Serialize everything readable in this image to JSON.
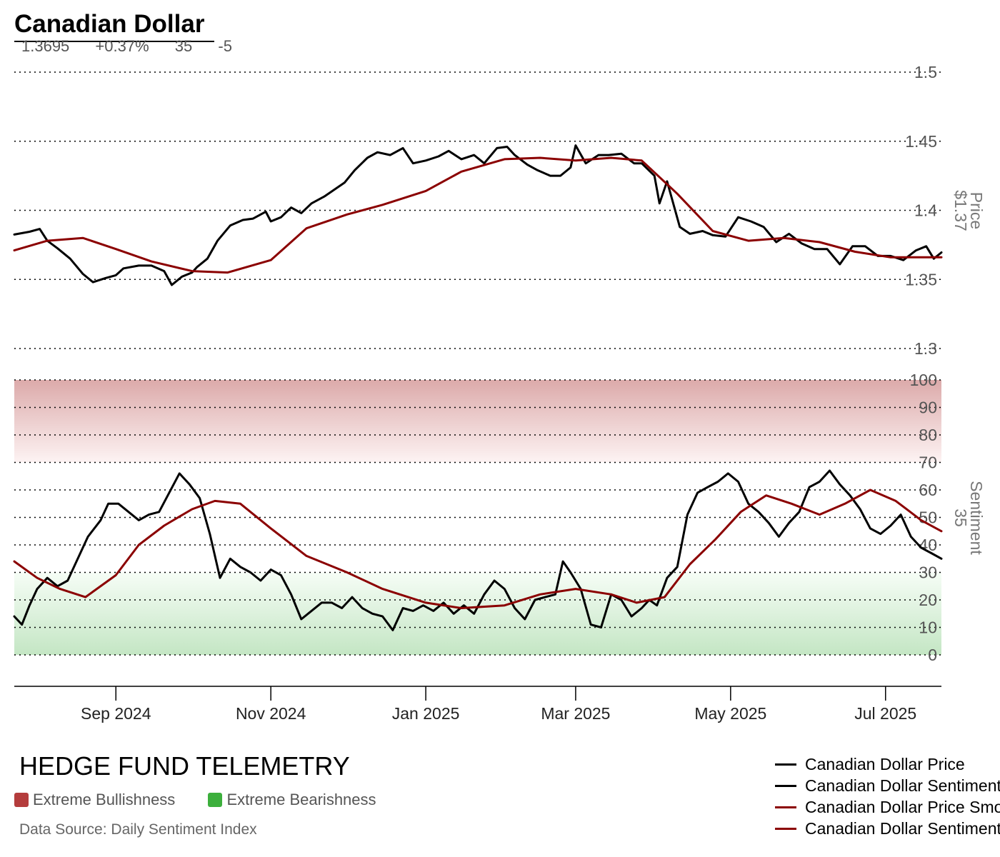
{
  "header": {
    "title": "Canadian Dollar",
    "price": "1.3695",
    "change": "+0.37%",
    "sentiment": "35",
    "sentiment_change": "-5"
  },
  "footer": {
    "brand": "HEDGE FUND TELEMETRY",
    "bull_label": "Extreme Bullishness",
    "bear_label": "Extreme Bearishness",
    "bull_color": "#b43c3c",
    "bear_color": "#3caf3c",
    "source": "Data Source: Daily Sentiment Index"
  },
  "chart_data": [
    {
      "type": "line",
      "panel": "price",
      "ylabel": "Price",
      "ylabel_value": "$1.37",
      "ylim": [
        1.3,
        1.5
      ],
      "yticks": [
        1.3,
        1.35,
        1.4,
        1.45,
        1.5
      ],
      "ytick_labels": [
        "1.3",
        "1.35",
        "1.4",
        "1.45",
        "1.5"
      ],
      "grid": true,
      "x_range": [
        "2024-07-23",
        "2025-07-23"
      ],
      "xticks": [
        "2024-09-01",
        "2024-11-01",
        "2025-01-01",
        "2025-03-01",
        "2025-05-01",
        "2025-07-01"
      ],
      "xtick_labels": [
        "Sep 2024",
        "Nov 2024",
        "Jan 2025",
        "Mar 2025",
        "May 2025",
        "Jul 2025"
      ],
      "series": [
        {
          "name": "Canadian Dollar Price",
          "color": "#000000",
          "x": [
            "2024-07-23",
            "2024-07-29",
            "2024-08-02",
            "2024-08-05",
            "2024-08-09",
            "2024-08-14",
            "2024-08-19",
            "2024-08-23",
            "2024-08-28",
            "2024-09-01",
            "2024-09-04",
            "2024-09-10",
            "2024-09-15",
            "2024-09-20",
            "2024-09-23",
            "2024-09-27",
            "2024-10-01",
            "2024-10-03",
            "2024-10-07",
            "2024-10-11",
            "2024-10-16",
            "2024-10-21",
            "2024-10-25",
            "2024-10-30",
            "2024-11-01",
            "2024-11-05",
            "2024-11-09",
            "2024-11-13",
            "2024-11-17",
            "2024-11-22",
            "2024-11-26",
            "2024-11-30",
            "2024-12-04",
            "2024-12-09",
            "2024-12-13",
            "2024-12-18",
            "2024-12-23",
            "2024-12-27",
            "2025-01-01",
            "2025-01-06",
            "2025-01-10",
            "2025-01-15",
            "2025-01-20",
            "2025-01-24",
            "2025-01-29",
            "2025-02-02",
            "2025-02-05",
            "2025-02-10",
            "2025-02-14",
            "2025-02-19",
            "2025-02-23",
            "2025-02-27",
            "2025-03-01",
            "2025-03-05",
            "2025-03-10",
            "2025-03-14",
            "2025-03-19",
            "2025-03-24",
            "2025-03-27",
            "2025-04-01",
            "2025-04-03",
            "2025-04-06",
            "2025-04-11",
            "2025-04-15",
            "2025-04-20",
            "2025-04-24",
            "2025-04-29",
            "2025-05-04",
            "2025-05-09",
            "2025-05-14",
            "2025-05-19",
            "2025-05-24",
            "2025-05-29",
            "2025-06-03",
            "2025-06-08",
            "2025-06-13",
            "2025-06-18",
            "2025-06-23",
            "2025-06-28",
            "2025-07-03",
            "2025-07-08",
            "2025-07-13",
            "2025-07-17",
            "2025-07-20",
            "2025-07-23"
          ],
          "values": [
            1.3825,
            1.3845,
            1.3865,
            1.378,
            1.3725,
            1.365,
            1.354,
            1.348,
            1.351,
            1.353,
            1.358,
            1.36,
            1.36,
            1.356,
            1.346,
            1.352,
            1.355,
            1.359,
            1.365,
            1.378,
            1.389,
            1.393,
            1.394,
            1.399,
            1.392,
            1.395,
            1.402,
            1.398,
            1.405,
            1.41,
            1.415,
            1.42,
            1.429,
            1.438,
            1.442,
            1.44,
            1.445,
            1.434,
            1.436,
            1.439,
            1.443,
            1.437,
            1.44,
            1.434,
            1.445,
            1.446,
            1.44,
            1.433,
            1.429,
            1.425,
            1.425,
            1.431,
            1.447,
            1.434,
            1.44,
            1.44,
            1.441,
            1.434,
            1.434,
            1.425,
            1.405,
            1.421,
            1.388,
            1.383,
            1.385,
            1.382,
            1.381,
            1.395,
            1.392,
            1.388,
            1.377,
            1.383,
            1.376,
            1.372,
            1.372,
            1.361,
            1.374,
            1.374,
            1.367,
            1.367,
            1.364,
            1.371,
            1.374,
            1.365,
            1.3695
          ]
        },
        {
          "name": "Canadian Dollar Price Smoothed",
          "color": "#8b0000",
          "x": [
            "2024-07-23",
            "2024-08-05",
            "2024-08-19",
            "2024-09-01",
            "2024-09-15",
            "2024-10-01",
            "2024-10-15",
            "2024-11-01",
            "2024-11-15",
            "2024-12-01",
            "2024-12-15",
            "2025-01-01",
            "2025-01-15",
            "2025-02-01",
            "2025-02-15",
            "2025-03-01",
            "2025-03-15",
            "2025-03-27",
            "2025-04-10",
            "2025-04-24",
            "2025-05-08",
            "2025-05-22",
            "2025-06-05",
            "2025-06-19",
            "2025-07-03",
            "2025-07-17",
            "2025-07-23"
          ],
          "values": [
            1.371,
            1.378,
            1.38,
            1.372,
            1.363,
            1.356,
            1.355,
            1.364,
            1.387,
            1.397,
            1.404,
            1.414,
            1.428,
            1.437,
            1.438,
            1.436,
            1.438,
            1.436,
            1.412,
            1.385,
            1.378,
            1.38,
            1.377,
            1.37,
            1.366,
            1.366,
            1.366
          ]
        }
      ]
    },
    {
      "type": "line",
      "panel": "sentiment",
      "ylabel": "Sentiment",
      "ylabel_value": "35",
      "ylim": [
        0,
        100
      ],
      "yticks": [
        0,
        10,
        20,
        30,
        40,
        50,
        60,
        70,
        80,
        90,
        100
      ],
      "ytick_labels": [
        "0",
        "10",
        "20",
        "30",
        "40",
        "50",
        "60",
        "70",
        "80",
        "90",
        "100"
      ],
      "grid": true,
      "bands": [
        {
          "label": "Extreme Bullishness",
          "from": 70,
          "to": 100
        },
        {
          "label": "Extreme Bearishness",
          "from": 0,
          "to": 30
        }
      ],
      "x_range": [
        "2024-07-23",
        "2025-07-23"
      ],
      "series": [
        {
          "name": "Canadian Dollar Sentiment",
          "color": "#000000",
          "x": [
            "2024-07-23",
            "2024-07-26",
            "2024-07-29",
            "2024-08-01",
            "2024-08-05",
            "2024-08-09",
            "2024-08-13",
            "2024-08-16",
            "2024-08-21",
            "2024-08-26",
            "2024-08-29",
            "2024-09-02",
            "2024-09-06",
            "2024-09-10",
            "2024-09-14",
            "2024-09-18",
            "2024-09-22",
            "2024-09-26",
            "2024-09-30",
            "2024-10-04",
            "2024-10-08",
            "2024-10-12",
            "2024-10-16",
            "2024-10-20",
            "2024-10-24",
            "2024-10-28",
            "2024-11-01",
            "2024-11-05",
            "2024-11-09",
            "2024-11-13",
            "2024-11-17",
            "2024-11-21",
            "2024-11-25",
            "2024-11-29",
            "2024-12-03",
            "2024-12-07",
            "2024-12-11",
            "2024-12-15",
            "2024-12-19",
            "2024-12-23",
            "2024-12-27",
            "2024-12-31",
            "2025-01-04",
            "2025-01-08",
            "2025-01-12",
            "2025-01-16",
            "2025-01-20",
            "2025-01-24",
            "2025-01-28",
            "2025-02-01",
            "2025-02-05",
            "2025-02-09",
            "2025-02-13",
            "2025-02-17",
            "2025-02-21",
            "2025-02-24",
            "2025-02-27",
            "2025-03-03",
            "2025-03-07",
            "2025-03-11",
            "2025-03-15",
            "2025-03-19",
            "2025-03-23",
            "2025-03-27",
            "2025-03-30",
            "2025-04-02",
            "2025-04-06",
            "2025-04-10",
            "2025-04-14",
            "2025-04-18",
            "2025-04-22",
            "2025-04-26",
            "2025-04-30",
            "2025-05-04",
            "2025-05-08",
            "2025-05-12",
            "2025-05-16",
            "2025-05-20",
            "2025-05-24",
            "2025-05-28",
            "2025-06-01",
            "2025-06-05",
            "2025-06-09",
            "2025-06-13",
            "2025-06-17",
            "2025-06-21",
            "2025-06-25",
            "2025-06-29",
            "2025-07-03",
            "2025-07-07",
            "2025-07-11",
            "2025-07-15",
            "2025-07-19",
            "2025-07-23"
          ],
          "values": [
            14,
            11,
            18,
            24,
            28,
            25,
            27,
            33,
            43,
            49,
            55,
            55,
            52,
            49,
            51,
            52,
            59,
            66,
            62,
            57,
            44,
            28,
            35,
            32,
            30,
            27,
            31,
            29,
            22,
            13,
            16,
            19,
            19,
            17,
            21,
            17,
            15,
            14,
            9,
            17,
            16,
            18,
            16,
            19,
            15,
            18,
            15,
            22,
            27,
            24,
            17,
            13,
            20,
            21,
            22,
            34,
            30,
            24,
            11,
            10,
            22,
            20,
            14,
            17,
            20,
            18,
            28,
            32,
            51,
            59,
            61,
            63,
            66,
            63,
            55,
            52,
            48,
            43,
            48,
            52,
            61,
            63,
            67,
            62,
            58,
            53,
            46,
            44,
            47,
            51,
            43,
            39,
            37,
            35
          ]
        },
        {
          "name": "Canadian Dollar Sentiment Smoothed",
          "color": "#8b0000",
          "x": [
            "2024-07-23",
            "2024-08-01",
            "2024-08-10",
            "2024-08-20",
            "2024-09-01",
            "2024-09-10",
            "2024-09-20",
            "2024-10-01",
            "2024-10-10",
            "2024-10-20",
            "2024-11-01",
            "2024-11-15",
            "2024-12-01",
            "2024-12-15",
            "2025-01-01",
            "2025-01-15",
            "2025-02-01",
            "2025-02-15",
            "2025-03-01",
            "2025-03-15",
            "2025-03-25",
            "2025-04-05",
            "2025-04-15",
            "2025-04-25",
            "2025-05-05",
            "2025-05-15",
            "2025-05-25",
            "2025-06-05",
            "2025-06-15",
            "2025-06-25",
            "2025-07-05",
            "2025-07-15",
            "2025-07-23"
          ],
          "values": [
            34,
            28,
            24,
            21,
            29,
            40,
            47,
            53,
            56,
            55,
            46,
            36,
            30,
            24,
            19,
            17,
            18,
            22,
            24,
            22,
            19,
            21,
            33,
            42,
            52,
            58,
            55,
            51,
            55,
            60,
            56,
            49,
            45
          ]
        }
      ]
    }
  ],
  "legend": [
    {
      "label": "Canadian Dollar Price",
      "color": "#000000"
    },
    {
      "label": "Canadian Dollar Sentiment",
      "color": "#000000"
    },
    {
      "label": "Canadian Dollar Price Smoothed",
      "color": "#8b0000"
    },
    {
      "label": "Canadian Dollar Sentiment Smoothed",
      "color": "#8b0000"
    }
  ]
}
